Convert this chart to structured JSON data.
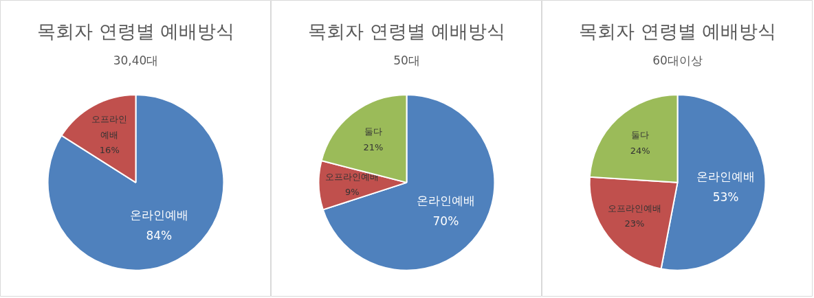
{
  "chart_data": [
    {
      "type": "pie",
      "title": "목회자 연령별 예배방식",
      "subtitle": "30,40대",
      "categories": [
        "온라인예배",
        "오프라인예배"
      ],
      "values": [
        84,
        16
      ],
      "value_labels": [
        "84%",
        "16%"
      ],
      "colors": [
        "#4f81bd",
        "#c0504d"
      ],
      "legend": false
    },
    {
      "type": "pie",
      "title": "목회자 연령별 예배방식",
      "subtitle": "50대",
      "categories": [
        "온라인예배",
        "오프라인예배",
        "둘다"
      ],
      "values": [
        70,
        9,
        21
      ],
      "value_labels": [
        "70%",
        "9%",
        "21%"
      ],
      "colors": [
        "#4f81bd",
        "#c0504d",
        "#9bbb59"
      ],
      "legend": false
    },
    {
      "type": "pie",
      "title": "목회자 연령별 예배방식",
      "subtitle": "60대이상",
      "categories": [
        "온라인예배",
        "오프라인예배",
        "둘다"
      ],
      "values": [
        53,
        23,
        24
      ],
      "value_labels": [
        "53%",
        "23%",
        "24%"
      ],
      "colors": [
        "#4f81bd",
        "#c0504d",
        "#9bbb59"
      ],
      "legend": false
    }
  ]
}
